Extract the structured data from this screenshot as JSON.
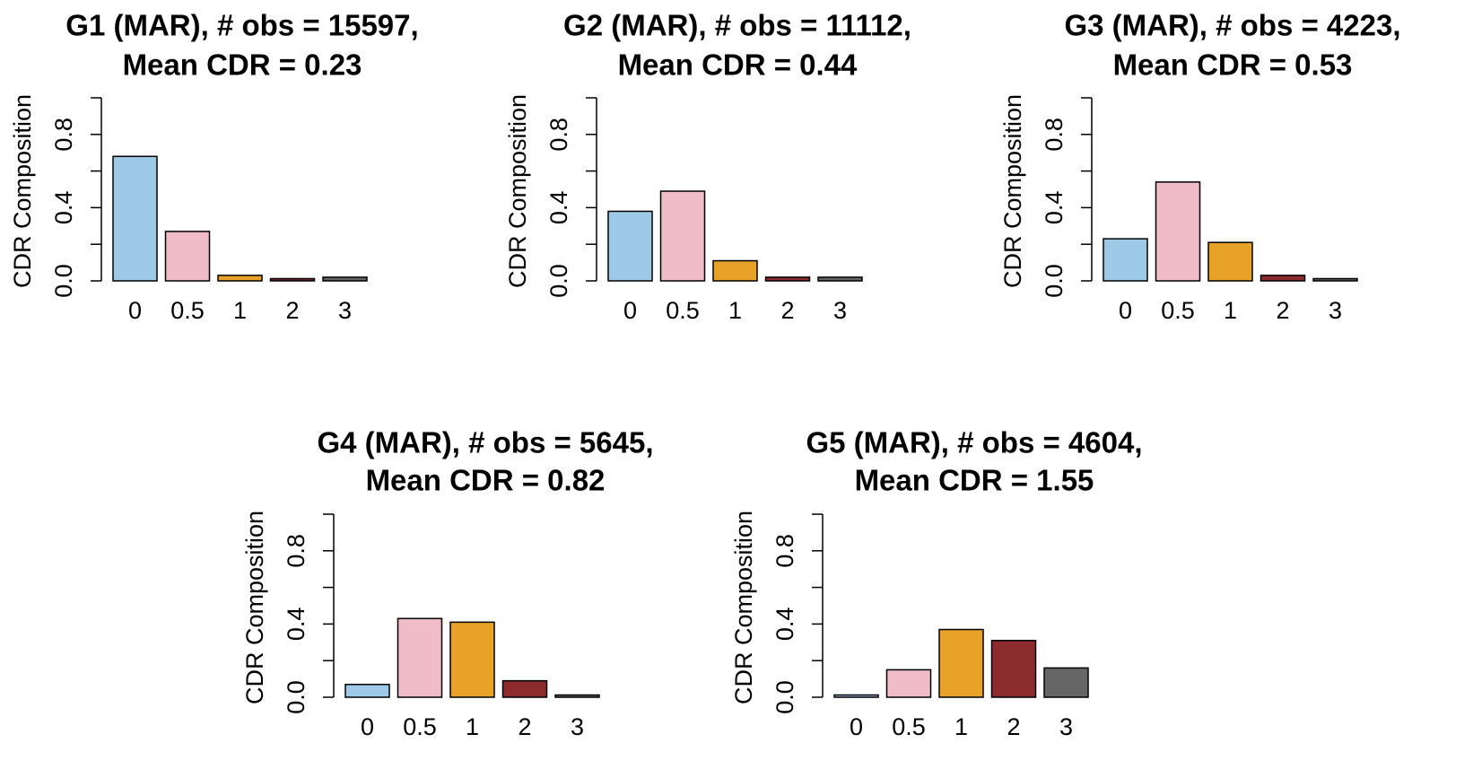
{
  "chart_data": [
    {
      "type": "bar",
      "title_line1": "G1 (MAR), # obs = 15597,",
      "title_line2": "Mean CDR = 0.23",
      "ylabel": "CDR Composition",
      "ylim": [
        0,
        1
      ],
      "yticks": [
        "0.0",
        "0.4",
        "0.8"
      ],
      "categories": [
        "0",
        "0.5",
        "1",
        "2",
        "3"
      ],
      "values": [
        0.68,
        0.27,
        0.03,
        0.01,
        0.02
      ]
    },
    {
      "type": "bar",
      "title_line1": "G2 (MAR), # obs = 11112,",
      "title_line2": "Mean CDR = 0.44",
      "ylabel": "CDR Composition",
      "ylim": [
        0,
        1
      ],
      "yticks": [
        "0.0",
        "0.4",
        "0.8"
      ],
      "categories": [
        "0",
        "0.5",
        "1",
        "2",
        "3"
      ],
      "values": [
        0.38,
        0.49,
        0.11,
        0.02,
        0.02
      ]
    },
    {
      "type": "bar",
      "title_line1": "G3 (MAR), # obs = 4223,",
      "title_line2": "Mean CDR = 0.53",
      "ylabel": "CDR Composition",
      "ylim": [
        0,
        1
      ],
      "yticks": [
        "0.0",
        "0.4",
        "0.8"
      ],
      "categories": [
        "0",
        "0.5",
        "1",
        "2",
        "3"
      ],
      "values": [
        0.23,
        0.54,
        0.21,
        0.03,
        0.005
      ]
    },
    {
      "type": "bar",
      "title_line1": "G4 (MAR), # obs = 5645,",
      "title_line2": "Mean CDR = 0.82",
      "ylabel": "CDR Composition",
      "ylim": [
        0,
        1
      ],
      "yticks": [
        "0.0",
        "0.4",
        "0.8"
      ],
      "categories": [
        "0",
        "0.5",
        "1",
        "2",
        "3"
      ],
      "values": [
        0.07,
        0.43,
        0.41,
        0.09,
        0.01
      ]
    },
    {
      "type": "bar",
      "title_line1": "G5 (MAR), # obs = 4604,",
      "title_line2": "Mean CDR = 1.55",
      "ylabel": "CDR Composition",
      "ylim": [
        0,
        1
      ],
      "yticks": [
        "0.0",
        "0.4",
        "0.8"
      ],
      "categories": [
        "0",
        "0.5",
        "1",
        "2",
        "3"
      ],
      "values": [
        0.01,
        0.15,
        0.37,
        0.31,
        0.16
      ]
    }
  ],
  "colors": {
    "bars": [
      "#9ecae8",
      "#f0bcc8",
      "#e8a227",
      "#8b2b2e",
      "#666666"
    ],
    "axis": "#000000",
    "background": "#ffffff"
  }
}
